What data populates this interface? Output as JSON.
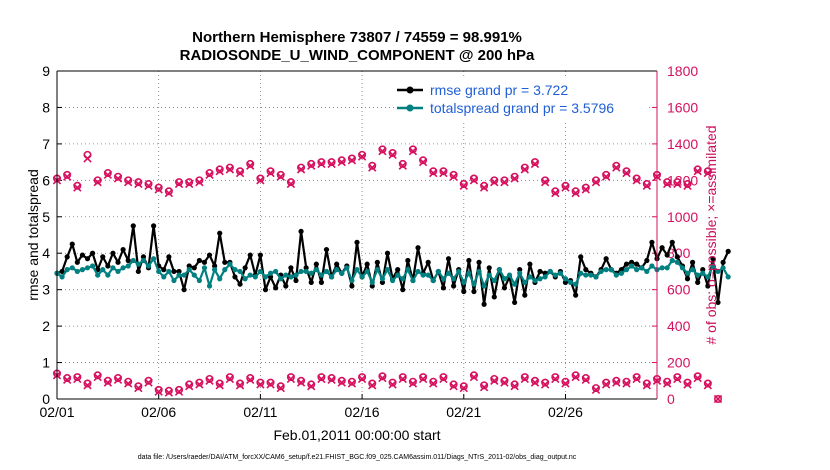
{
  "chart_data": {
    "type": "line",
    "title_line1": "Northern Hemisphere 73807 / 74559 = 98.991%",
    "title_line2": "RADIOSONDE_U_WIND_COMPONENT @ 200 hPa",
    "xlabel": "Feb.01,2011 00:00:00 start",
    "ylabel_left": "rmse and totalspread",
    "ylabel_right": "# of obs: o=possible; ×=assimilated",
    "footnote": "data file: /Users/raeder/DAI/ATM_forcXX/CAM6_setup/f.e21.FHIST_BGC.f09_025.CAM6assim.011/Diags_NTrS_2011-02/obs_diag_output.nc",
    "xlim": [
      0,
      29.5
    ],
    "x_ticks": [
      0,
      5,
      10,
      15,
      20,
      25
    ],
    "x_tick_labels": [
      "02/01",
      "02/06",
      "02/11",
      "02/16",
      "02/21",
      "02/26"
    ],
    "ylim_left": [
      0,
      9
    ],
    "y_ticks_left": [
      "0",
      "1",
      "2",
      "3",
      "4",
      "5",
      "6",
      "7",
      "8",
      "9"
    ],
    "ylim_right": [
      0,
      1800
    ],
    "y_ticks_right": [
      "0",
      "200",
      "400",
      "600",
      "800",
      "1000",
      "1200",
      "1400",
      "1600",
      "1800"
    ],
    "colors": {
      "rmse": "#000000",
      "spread": "#008080",
      "obs": "#d6105e",
      "legend_text": "#1f5fd6"
    },
    "legend": {
      "rmse": "rmse grand pr = 3.722",
      "spread": "totalspread grand pr = 3.5796"
    },
    "time_step_days": 0.25,
    "rmse": [
      3.45,
      3.5,
      3.9,
      4.25,
      3.75,
      3.95,
      3.85,
      4.0,
      3.55,
      3.9,
      3.65,
      4.0,
      3.75,
      4.1,
      3.8,
      4.75,
      3.5,
      3.9,
      3.6,
      4.75,
      3.65,
      3.55,
      3.9,
      3.5,
      3.5,
      3.0,
      3.65,
      3.6,
      3.8,
      3.75,
      3.95,
      3.65,
      4.55,
      3.75,
      3.75,
      3.35,
      3.15,
      3.6,
      3.95,
      3.4,
      3.95,
      3.0,
      3.35,
      3.05,
      3.4,
      3.1,
      3.6,
      3.25,
      4.6,
      3.6,
      3.2,
      3.7,
      3.2,
      4.1,
      3.35,
      3.7,
      3.45,
      3.65,
      3.1,
      4.3,
      3.35,
      3.7,
      3.1,
      3.75,
      3.2,
      4.0,
      3.3,
      3.55,
      3.0,
      3.8,
      3.25,
      4.15,
      3.45,
      3.75,
      3.25,
      3.5,
      3.05,
      3.85,
      3.1,
      3.55,
      2.95,
      3.8,
      2.95,
      3.75,
      2.6,
      3.6,
      2.8,
      3.55,
      3.05,
      3.35,
      2.65,
      3.55,
      2.85,
      3.7,
      3.2,
      3.5,
      3.45,
      3.5,
      3.35,
      3.5,
      3.2,
      3.25,
      2.85,
      3.9,
      3.55,
      3.45,
      3.35,
      3.55,
      3.85,
      3.55,
      3.45,
      3.55,
      3.7,
      3.75,
      3.7,
      3.6,
      3.8,
      4.3,
      3.85,
      4.15,
      3.95,
      4.3,
      3.9,
      3.65,
      3.3,
      3.75,
      3.2,
      3.55,
      3.1,
      3.85,
      2.65,
      3.75,
      4.05
    ],
    "spread": [
      3.45,
      3.35,
      3.55,
      3.6,
      3.5,
      3.55,
      3.6,
      3.65,
      3.4,
      3.55,
      3.4,
      3.6,
      3.5,
      3.6,
      3.65,
      3.8,
      3.7,
      3.8,
      3.65,
      3.85,
      3.5,
      3.35,
      3.5,
      3.25,
      3.4,
      3.4,
      3.55,
      3.4,
      3.25,
      3.6,
      3.1,
      3.55,
      3.3,
      3.55,
      3.7,
      3.55,
      3.5,
      3.3,
      3.4,
      3.35,
      3.5,
      3.35,
      3.45,
      3.5,
      3.3,
      3.4,
      3.35,
      3.4,
      3.5,
      3.5,
      3.45,
      3.55,
      3.4,
      3.5,
      3.35,
      3.55,
      3.45,
      3.6,
      3.25,
      3.55,
      3.35,
      3.5,
      3.2,
      3.55,
      3.3,
      3.55,
      3.25,
      3.4,
      3.3,
      3.55,
      3.25,
      3.5,
      3.4,
      3.4,
      3.25,
      3.5,
      3.3,
      3.45,
      3.3,
      3.5,
      3.2,
      3.45,
      3.15,
      3.5,
      3.1,
      3.4,
      3.25,
      3.55,
      3.3,
      3.4,
      3.15,
      3.45,
      3.2,
      3.35,
      3.25,
      3.3,
      3.35,
      3.5,
      3.4,
      3.45,
      3.3,
      3.2,
      3.15,
      3.45,
      3.4,
      3.4,
      3.35,
      3.5,
      3.55,
      3.55,
      3.4,
      3.45,
      3.55,
      3.65,
      3.55,
      3.6,
      3.5,
      3.65,
      3.55,
      3.6,
      3.6,
      3.8,
      3.75,
      3.6,
      3.45,
      3.55,
      3.4,
      3.45,
      3.35,
      3.65,
      3.5,
      3.6,
      3.35
    ],
    "obs_time_step_days": 0.5,
    "obs_possible": [
      1210,
      1230,
      1170,
      1340,
      1200,
      1240,
      1220,
      1200,
      1190,
      1180,
      1160,
      1140,
      1190,
      1190,
      1200,
      1240,
      1260,
      1270,
      1250,
      1290,
      1210,
      1250,
      1230,
      1190,
      1270,
      1290,
      1300,
      1300,
      1310,
      1320,
      1340,
      1280,
      1370,
      1350,
      1290,
      1370,
      1310,
      1250,
      1250,
      1230,
      1180,
      1210,
      1170,
      1200,
      1200,
      1220,
      1270,
      1300,
      1200,
      1140,
      1170,
      1140,
      1160,
      1200,
      1230,
      1280,
      1250,
      1210,
      1180,
      1230,
      1190,
      1190,
      1180,
      1260,
      1250
    ],
    "obs_assimilated": [
      1200,
      1220,
      1160,
      1320,
      1190,
      1230,
      1210,
      1190,
      1180,
      1170,
      1150,
      1130,
      1180,
      1180,
      1190,
      1230,
      1250,
      1260,
      1240,
      1280,
      1200,
      1240,
      1220,
      1180,
      1260,
      1280,
      1290,
      1290,
      1300,
      1310,
      1330,
      1270,
      1360,
      1340,
      1280,
      1360,
      1300,
      1240,
      1240,
      1220,
      1170,
      1200,
      1160,
      1190,
      1190,
      1210,
      1260,
      1290,
      1190,
      1130,
      1160,
      1130,
      1150,
      1190,
      1220,
      1270,
      1240,
      1200,
      1170,
      1220,
      1180,
      1180,
      1170,
      1250,
      1240
    ],
    "obs_low_possible": [
      140,
      115,
      120,
      85,
      130,
      100,
      115,
      95,
      70,
      100,
      50,
      45,
      50,
      80,
      90,
      110,
      85,
      120,
      85,
      115,
      90,
      90,
      70,
      120,
      100,
      80,
      120,
      115,
      100,
      95,
      120,
      85,
      125,
      90,
      120,
      95,
      120,
      95,
      120,
      80,
      70,
      130,
      75,
      110,
      100,
      80,
      120,
      100,
      90,
      120,
      95,
      130,
      115,
      60,
      90,
      100,
      95,
      120,
      85,
      110,
      95,
      120,
      90,
      125,
      85,
      0
    ],
    "obs_low_assimilated": [
      130,
      105,
      110,
      75,
      120,
      90,
      105,
      85,
      60,
      90,
      40,
      35,
      40,
      70,
      80,
      100,
      75,
      110,
      75,
      105,
      80,
      80,
      60,
      110,
      90,
      70,
      110,
      105,
      90,
      85,
      110,
      75,
      115,
      80,
      110,
      85,
      110,
      85,
      110,
      70,
      60,
      120,
      65,
      100,
      90,
      70,
      110,
      90,
      80,
      110,
      85,
      120,
      105,
      50,
      80,
      90,
      85,
      110,
      75,
      100,
      85,
      110,
      80,
      115,
      75,
      0
    ]
  }
}
